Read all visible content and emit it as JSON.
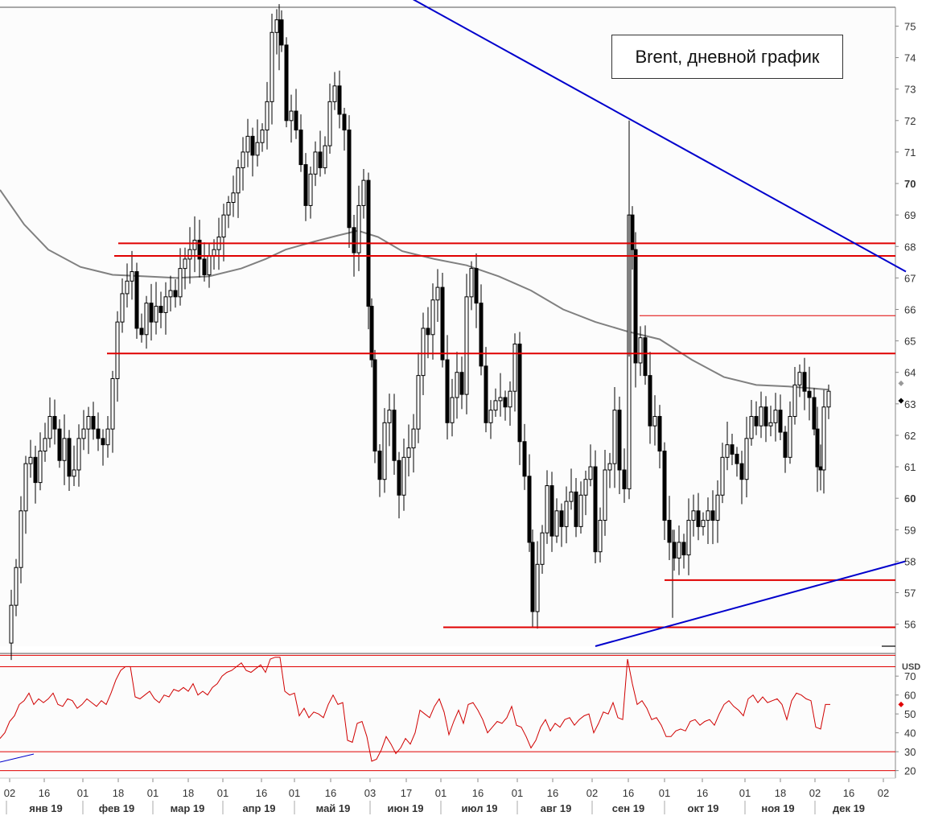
{
  "title": "Brent, дневной график",
  "currency_label": "USD",
  "colors": {
    "level_line": "#e00000",
    "trend_line": "#0000cc",
    "ma_line": "#808080",
    "rsi_line": "#d00000",
    "candle": "#000000",
    "marker_gray": "#999999",
    "marker_black": "#000000",
    "marker_red": "#e00000"
  },
  "chart_data": {
    "type": "candlestick",
    "price_axis": {
      "ticks": [
        56,
        57,
        58,
        59,
        60,
        61,
        62,
        63,
        64,
        65,
        66,
        67,
        68,
        69,
        70,
        71,
        72,
        73,
        74,
        75
      ],
      "range": [
        55.3,
        75.6
      ],
      "bold_ticks": [
        60,
        70
      ]
    },
    "rsi_axis": {
      "ticks": [
        20,
        30,
        40,
        50,
        60,
        70
      ],
      "range": [
        16,
        82
      ],
      "level_lines": [
        20,
        30,
        75,
        81
      ]
    },
    "time_axis": {
      "day_ticks": [
        "02",
        "16",
        "01",
        "18",
        "01",
        "18",
        "01",
        "16",
        "01",
        "16",
        "03",
        "17",
        "01",
        "16",
        "01",
        "16",
        "02",
        "16",
        "01",
        "16",
        "01",
        "18",
        "02",
        "16",
        "02"
      ],
      "months": [
        "янв 19",
        "фев 19",
        "мар 19",
        "апр 19",
        "май 19",
        "июн 19",
        "июл 19",
        "авг 19",
        "сен 19",
        "окт 19",
        "ноя 19",
        "дек 19"
      ]
    },
    "horizontal_levels": [
      {
        "price": 68.1,
        "from": "фев 19"
      },
      {
        "price": 67.7,
        "from": "фев 19"
      },
      {
        "price": 64.6,
        "from": "фев 19"
      },
      {
        "price": 65.8,
        "from": "сен 19"
      },
      {
        "price": 57.4,
        "from": "окт 19"
      },
      {
        "price": 55.9,
        "from": "июл 19"
      }
    ],
    "trend_lines": [
      {
        "name": "",
        "from": {
          "date": "апр 19",
          "price": 75.9
        },
        "to": {
          "date": "дек 19",
          "price": 67.2
        }
      },
      {
        "name": "",
        "from": {
          "date": "сен 19",
          "price": 55.3
        },
        "to": {
          "date": "дек 19",
          "price": 58.0
        }
      }
    ],
    "moving_average": [
      [
        0,
        69.8
      ],
      [
        30,
        68.7
      ],
      [
        60,
        67.9
      ],
      [
        100,
        67.35
      ],
      [
        140,
        67.1
      ],
      [
        180,
        67.05
      ],
      [
        220,
        67.0
      ],
      [
        260,
        67.05
      ],
      [
        300,
        67.3
      ],
      [
        330,
        67.6
      ],
      [
        355,
        67.9
      ],
      [
        390,
        68.15
      ],
      [
        420,
        68.35
      ],
      [
        445,
        68.5
      ],
      [
        470,
        68.3
      ],
      [
        500,
        67.85
      ],
      [
        540,
        67.6
      ],
      [
        580,
        67.4
      ],
      [
        620,
        67.05
      ],
      [
        660,
        66.6
      ],
      [
        700,
        66.0
      ],
      [
        740,
        65.6
      ],
      [
        780,
        65.3
      ],
      [
        820,
        65.05
      ],
      [
        860,
        64.4
      ],
      [
        900,
        63.85
      ],
      [
        940,
        63.6
      ],
      [
        980,
        63.55
      ],
      [
        1030,
        63.45
      ]
    ],
    "close_path": [
      [
        10,
        55.4
      ],
      [
        14,
        56.6
      ],
      [
        20,
        57.8
      ],
      [
        26,
        59.6
      ],
      [
        32,
        61.1
      ],
      [
        38,
        61.3
      ],
      [
        44,
        60.5
      ],
      [
        50,
        61.5
      ],
      [
        56,
        61.9
      ],
      [
        62,
        62.6
      ],
      [
        68,
        62.2
      ],
      [
        74,
        61.2
      ],
      [
        80,
        61.9
      ],
      [
        86,
        60.7
      ],
      [
        92,
        60.9
      ],
      [
        98,
        61.9
      ],
      [
        104,
        62.2
      ],
      [
        110,
        62.6
      ],
      [
        116,
        62.2
      ],
      [
        122,
        61.9
      ],
      [
        128,
        61.7
      ],
      [
        134,
        62.2
      ],
      [
        140,
        63.8
      ],
      [
        146,
        65.6
      ],
      [
        152,
        66.5
      ],
      [
        158,
        66.9
      ],
      [
        164,
        67.2
      ],
      [
        170,
        65.4
      ],
      [
        176,
        65.2
      ],
      [
        182,
        66.2
      ],
      [
        188,
        65.6
      ],
      [
        194,
        66.1
      ],
      [
        200,
        65.9
      ],
      [
        206,
        66.4
      ],
      [
        212,
        66.6
      ],
      [
        218,
        66.4
      ],
      [
        224,
        67.3
      ],
      [
        230,
        67.6
      ],
      [
        236,
        67.9
      ],
      [
        242,
        68.2
      ],
      [
        248,
        67.6
      ],
      [
        254,
        67.1
      ],
      [
        260,
        67.7
      ],
      [
        266,
        67.9
      ],
      [
        272,
        68.3
      ],
      [
        278,
        69.0
      ],
      [
        284,
        69.4
      ],
      [
        290,
        69.7
      ],
      [
        296,
        70.5
      ],
      [
        302,
        71.0
      ],
      [
        308,
        71.5
      ],
      [
        314,
        70.9
      ],
      [
        320,
        71.3
      ],
      [
        326,
        71.7
      ],
      [
        332,
        72.6
      ],
      [
        338,
        74.8
      ],
      [
        344,
        75.2
      ],
      [
        350,
        74.4
      ],
      [
        356,
        72.0
      ],
      [
        362,
        72.3
      ],
      [
        368,
        71.7
      ],
      [
        374,
        70.6
      ],
      [
        380,
        69.3
      ],
      [
        386,
        70.3
      ],
      [
        392,
        71.0
      ],
      [
        398,
        70.5
      ],
      [
        404,
        71.2
      ],
      [
        410,
        72.6
      ],
      [
        416,
        73.1
      ],
      [
        422,
        72.2
      ],
      [
        428,
        71.7
      ],
      [
        434,
        68.6
      ],
      [
        440,
        67.8
      ],
      [
        446,
        69.3
      ],
      [
        452,
        70.1
      ],
      [
        458,
        66.1
      ],
      [
        462,
        64.4
      ],
      [
        466,
        61.5
      ],
      [
        472,
        60.6
      ],
      [
        478,
        62.4
      ],
      [
        484,
        62.8
      ],
      [
        490,
        61.2
      ],
      [
        496,
        60.1
      ],
      [
        502,
        61.3
      ],
      [
        508,
        61.6
      ],
      [
        514,
        62.2
      ],
      [
        520,
        63.9
      ],
      [
        526,
        65.4
      ],
      [
        532,
        65.2
      ],
      [
        538,
        66.3
      ],
      [
        544,
        66.7
      ],
      [
        550,
        64.4
      ],
      [
        556,
        62.4
      ],
      [
        562,
        63.2
      ],
      [
        568,
        64.0
      ],
      [
        574,
        63.3
      ],
      [
        580,
        66.4
      ],
      [
        586,
        67.3
      ],
      [
        592,
        66.2
      ],
      [
        598,
        64.2
      ],
      [
        604,
        62.4
      ],
      [
        610,
        62.8
      ],
      [
        616,
        63.1
      ],
      [
        622,
        63.2
      ],
      [
        628,
        62.9
      ],
      [
        634,
        63.4
      ],
      [
        640,
        64.9
      ],
      [
        646,
        61.8
      ],
      [
        652,
        60.7
      ],
      [
        658,
        58.6
      ],
      [
        662,
        56.4
      ],
      [
        668,
        57.9
      ],
      [
        674,
        58.9
      ],
      [
        680,
        60.4
      ],
      [
        686,
        58.8
      ],
      [
        692,
        59.6
      ],
      [
        698,
        59.1
      ],
      [
        704,
        59.9
      ],
      [
        710,
        60.2
      ],
      [
        716,
        59.1
      ],
      [
        722,
        60.1
      ],
      [
        728,
        60.6
      ],
      [
        734,
        61.0
      ],
      [
        740,
        58.3
      ],
      [
        746,
        59.3
      ],
      [
        752,
        60.9
      ],
      [
        758,
        61.1
      ],
      [
        764,
        62.8
      ],
      [
        770,
        60.9
      ],
      [
        776,
        60.3
      ],
      [
        782,
        69.0
      ],
      [
        786,
        67.9
      ],
      [
        790,
        64.3
      ],
      [
        796,
        65.1
      ],
      [
        802,
        63.9
      ],
      [
        808,
        62.3
      ],
      [
        814,
        62.6
      ],
      [
        820,
        61.5
      ],
      [
        826,
        59.3
      ],
      [
        832,
        58.6
      ],
      [
        838,
        58.1
      ],
      [
        844,
        58.6
      ],
      [
        850,
        58.2
      ],
      [
        856,
        59.3
      ],
      [
        862,
        59.6
      ],
      [
        868,
        59.1
      ],
      [
        874,
        59.3
      ],
      [
        880,
        59.6
      ],
      [
        886,
        59.3
      ],
      [
        892,
        60.1
      ],
      [
        898,
        61.3
      ],
      [
        904,
        61.7
      ],
      [
        910,
        61.4
      ],
      [
        916,
        61.1
      ],
      [
        922,
        60.6
      ],
      [
        928,
        61.9
      ],
      [
        934,
        62.6
      ],
      [
        940,
        62.3
      ],
      [
        946,
        62.9
      ],
      [
        952,
        62.3
      ],
      [
        958,
        62.4
      ],
      [
        964,
        62.8
      ],
      [
        970,
        62.1
      ],
      [
        976,
        61.3
      ],
      [
        982,
        62.6
      ],
      [
        988,
        63.6
      ],
      [
        994,
        64.0
      ],
      [
        1000,
        63.4
      ],
      [
        1006,
        63.2
      ],
      [
        1012,
        62.2
      ],
      [
        1016,
        61.0
      ],
      [
        1020,
        60.9
      ],
      [
        1024,
        62.9
      ],
      [
        1030,
        63.4
      ]
    ],
    "rsi_path": [
      [
        0,
        37
      ],
      [
        6,
        40
      ],
      [
        12,
        46
      ],
      [
        18,
        49
      ],
      [
        24,
        55
      ],
      [
        30,
        57
      ],
      [
        36,
        61
      ],
      [
        42,
        55
      ],
      [
        48,
        58
      ],
      [
        54,
        56
      ],
      [
        60,
        58
      ],
      [
        66,
        61
      ],
      [
        72,
        55
      ],
      [
        78,
        54
      ],
      [
        84,
        58
      ],
      [
        90,
        57
      ],
      [
        96,
        53
      ],
      [
        102,
        55
      ],
      [
        108,
        58
      ],
      [
        114,
        56
      ],
      [
        120,
        54
      ],
      [
        126,
        57
      ],
      [
        132,
        55
      ],
      [
        138,
        61
      ],
      [
        144,
        68
      ],
      [
        150,
        73
      ],
      [
        156,
        75
      ],
      [
        162,
        75
      ],
      [
        168,
        59
      ],
      [
        174,
        58
      ],
      [
        180,
        60
      ],
      [
        186,
        62
      ],
      [
        192,
        58
      ],
      [
        198,
        56
      ],
      [
        204,
        60
      ],
      [
        210,
        59
      ],
      [
        216,
        63
      ],
      [
        222,
        62
      ],
      [
        228,
        64
      ],
      [
        234,
        62
      ],
      [
        240,
        66
      ],
      [
        246,
        60
      ],
      [
        252,
        62
      ],
      [
        258,
        60
      ],
      [
        264,
        64
      ],
      [
        270,
        66
      ],
      [
        276,
        70
      ],
      [
        282,
        72
      ],
      [
        288,
        73
      ],
      [
        294,
        75
      ],
      [
        300,
        77
      ],
      [
        306,
        73
      ],
      [
        312,
        72
      ],
      [
        318,
        74
      ],
      [
        324,
        76
      ],
      [
        330,
        72
      ],
      [
        336,
        79
      ],
      [
        342,
        80
      ],
      [
        348,
        80
      ],
      [
        354,
        62
      ],
      [
        360,
        60
      ],
      [
        366,
        61
      ],
      [
        372,
        49
      ],
      [
        378,
        53
      ],
      [
        384,
        48
      ],
      [
        390,
        51
      ],
      [
        396,
        50
      ],
      [
        402,
        48
      ],
      [
        408,
        55
      ],
      [
        414,
        60
      ],
      [
        420,
        55
      ],
      [
        426,
        56
      ],
      [
        432,
        36
      ],
      [
        438,
        35
      ],
      [
        444,
        45
      ],
      [
        450,
        46
      ],
      [
        456,
        38
      ],
      [
        462,
        25
      ],
      [
        468,
        26
      ],
      [
        474,
        31
      ],
      [
        480,
        38
      ],
      [
        486,
        34
      ],
      [
        492,
        29
      ],
      [
        498,
        32
      ],
      [
        504,
        37
      ],
      [
        510,
        34
      ],
      [
        516,
        40
      ],
      [
        522,
        52
      ],
      [
        528,
        50
      ],
      [
        534,
        48
      ],
      [
        540,
        54
      ],
      [
        546,
        58
      ],
      [
        552,
        51
      ],
      [
        558,
        39
      ],
      [
        564,
        46
      ],
      [
        570,
        52
      ],
      [
        576,
        45
      ],
      [
        582,
        55
      ],
      [
        588,
        56
      ],
      [
        594,
        52
      ],
      [
        600,
        47
      ],
      [
        606,
        40
      ],
      [
        612,
        43
      ],
      [
        618,
        46
      ],
      [
        624,
        45
      ],
      [
        630,
        48
      ],
      [
        636,
        54
      ],
      [
        642,
        44
      ],
      [
        648,
        43
      ],
      [
        654,
        38
      ],
      [
        660,
        32
      ],
      [
        666,
        36
      ],
      [
        672,
        43
      ],
      [
        678,
        47
      ],
      [
        684,
        41
      ],
      [
        690,
        45
      ],
      [
        696,
        43
      ],
      [
        702,
        47
      ],
      [
        708,
        48
      ],
      [
        714,
        44
      ],
      [
        720,
        47
      ],
      [
        726,
        49
      ],
      [
        732,
        50
      ],
      [
        738,
        40
      ],
      [
        744,
        45
      ],
      [
        750,
        51
      ],
      [
        756,
        50
      ],
      [
        762,
        56
      ],
      [
        768,
        48
      ],
      [
        774,
        47
      ],
      [
        780,
        79
      ],
      [
        786,
        66
      ],
      [
        792,
        55
      ],
      [
        798,
        57
      ],
      [
        804,
        53
      ],
      [
        810,
        47
      ],
      [
        816,
        48
      ],
      [
        822,
        44
      ],
      [
        828,
        38
      ],
      [
        834,
        38
      ],
      [
        840,
        41
      ],
      [
        846,
        42
      ],
      [
        852,
        41
      ],
      [
        858,
        46
      ],
      [
        864,
        47
      ],
      [
        870,
        44
      ],
      [
        876,
        46
      ],
      [
        882,
        47
      ],
      [
        888,
        44
      ],
      [
        894,
        50
      ],
      [
        900,
        55
      ],
      [
        906,
        57
      ],
      [
        912,
        54
      ],
      [
        918,
        52
      ],
      [
        924,
        49
      ],
      [
        930,
        58
      ],
      [
        936,
        60
      ],
      [
        942,
        56
      ],
      [
        948,
        59
      ],
      [
        954,
        56
      ],
      [
        960,
        57
      ],
      [
        966,
        58
      ],
      [
        972,
        55
      ],
      [
        978,
        47
      ],
      [
        984,
        57
      ],
      [
        990,
        61
      ],
      [
        996,
        60
      ],
      [
        1002,
        58
      ],
      [
        1008,
        57
      ],
      [
        1014,
        43
      ],
      [
        1020,
        42
      ],
      [
        1026,
        55
      ],
      [
        1032,
        55
      ]
    ],
    "markers": {
      "price_gray": 63.55,
      "price_black": 63.2,
      "rsi_red": 55
    }
  }
}
